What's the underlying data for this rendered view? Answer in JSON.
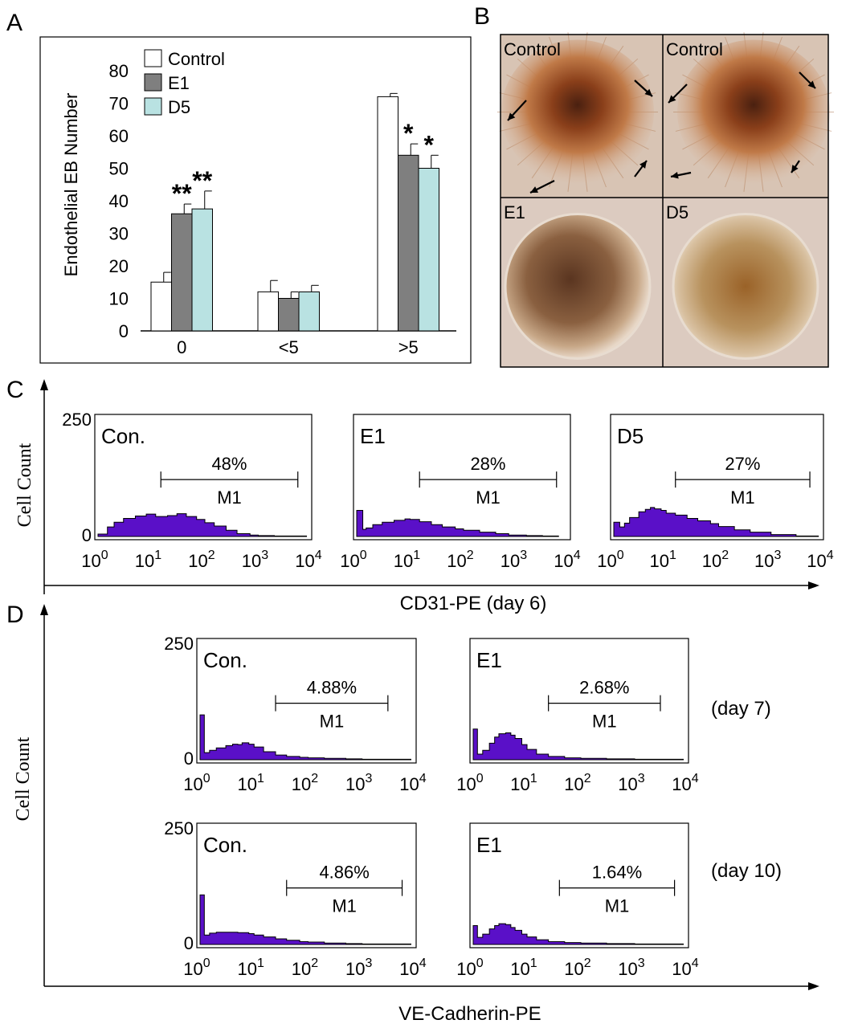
{
  "panel_labels": {
    "a": "A",
    "b": "B",
    "c": "C",
    "d": "D"
  },
  "colors": {
    "control": "#ffffff",
    "e1": "#7f7f7f",
    "d5": "#b9e2e2",
    "histogram": "#5a10c8"
  },
  "chart_data": [
    {
      "type": "bar",
      "panel": "A",
      "categories": [
        "0",
        "<5",
        ">5"
      ],
      "ylabel": "Endothelial EB Number",
      "ylim": [
        0,
        80
      ],
      "yticks": [
        "0",
        "10",
        "20",
        "30",
        "40",
        "50",
        "60",
        "70",
        "80"
      ],
      "legend_position": "top-left",
      "series": [
        {
          "name": "Control",
          "values": [
            15,
            12,
            72
          ],
          "errors": [
            3,
            3.5,
            1
          ]
        },
        {
          "name": "E1",
          "values": [
            36,
            10,
            54
          ],
          "errors": [
            3,
            2,
            3.5
          ]
        },
        {
          "name": "D5",
          "values": [
            37.5,
            12,
            50
          ],
          "errors": [
            5.5,
            2,
            4
          ]
        }
      ],
      "significance": [
        {
          "category": "0",
          "series": "E1",
          "label": "**"
        },
        {
          "category": "0",
          "series": "D5",
          "label": "**"
        },
        {
          "category": ">5",
          "series": "E1",
          "label": "*"
        },
        {
          "category": ">5",
          "series": "D5",
          "label": "*"
        }
      ]
    },
    {
      "type": "area",
      "panel": "C",
      "xlabel": "CD31-PE (day 6)",
      "ylabel": "Cell Count",
      "x_scale": "log",
      "xlim": [
        1,
        10000
      ],
      "ylim": [
        0,
        250
      ],
      "histograms": [
        {
          "name": "Con.",
          "gate": "M1",
          "gate_percent": "48%",
          "gate_range": [
            15,
            5500
          ],
          "x": [
            1,
            1.5,
            2,
            3,
            5,
            8,
            12,
            20,
            30,
            45,
            70,
            100,
            150,
            250,
            400,
            700,
            1000,
            2000,
            4000,
            8000
          ],
          "y": [
            5,
            20,
            30,
            38,
            43,
            47,
            42,
            44,
            48,
            42,
            36,
            29,
            22,
            13,
            6,
            3,
            2,
            1,
            1,
            0
          ]
        },
        {
          "name": "E1",
          "gate": "M1",
          "gate_percent": "28%",
          "gate_range": [
            15,
            5500
          ],
          "x": [
            1,
            1.3,
            1.5,
            2,
            3,
            5,
            8,
            10,
            15,
            25,
            40,
            70,
            100,
            200,
            400,
            700,
            1500,
            3000,
            6000
          ],
          "y": [
            55,
            15,
            18,
            25,
            30,
            34,
            37,
            36,
            31,
            25,
            20,
            16,
            13,
            9,
            6,
            3,
            2,
            1,
            0
          ]
        },
        {
          "name": "D5",
          "gate": "M1",
          "gate_percent": "27%",
          "gate_range": [
            15,
            5500
          ],
          "x": [
            1,
            1.3,
            1.6,
            2,
            3,
            4,
            5,
            6,
            8,
            10,
            15,
            25,
            40,
            70,
            100,
            200,
            400,
            1000,
            3000,
            8000
          ],
          "y": [
            30,
            20,
            28,
            40,
            52,
            57,
            61,
            58,
            55,
            49,
            45,
            38,
            33,
            27,
            21,
            14,
            9,
            4,
            1,
            0
          ]
        }
      ]
    },
    {
      "type": "area",
      "panel": "D",
      "xlabel": "VE-Cadherin-PE",
      "ylabel": "Cell Count",
      "x_scale": "log",
      "xlim": [
        1,
        10000
      ],
      "ylim": [
        0,
        250
      ],
      "histograms": [
        {
          "name": "Con.",
          "timepoint": "(day 7)",
          "gate": "M1",
          "gate_percent": "4.88%",
          "gate_range": [
            25,
            3000
          ],
          "x": [
            1,
            1.2,
            1.5,
            2,
            3,
            4,
            5,
            6,
            8,
            10,
            15,
            25,
            40,
            70,
            100,
            200,
            500,
            1000,
            3000,
            8000
          ],
          "y": [
            95,
            15,
            20,
            25,
            30,
            33,
            32,
            36,
            33,
            27,
            17,
            10,
            7,
            5,
            4,
            3,
            2,
            1,
            1,
            0
          ]
        },
        {
          "name": "E1",
          "timepoint": "(day 7)",
          "gate": "M1",
          "gate_percent": "2.68%",
          "gate_range": [
            25,
            3000
          ],
          "x": [
            1,
            1.2,
            1.5,
            2,
            2.5,
            3,
            4,
            5,
            6,
            8,
            10,
            15,
            25,
            50,
            100,
            300,
            1000,
            3000,
            8000
          ],
          "y": [
            65,
            12,
            20,
            35,
            48,
            55,
            57,
            52,
            45,
            32,
            22,
            12,
            7,
            4,
            3,
            2,
            1,
            1,
            0
          ]
        },
        {
          "name": "Con.",
          "timepoint": "(day 10)",
          "gate": "M1",
          "gate_percent": "4.86%",
          "gate_range": [
            40,
            5500
          ],
          "x": [
            1,
            1.2,
            1.5,
            2,
            3,
            5,
            8,
            10,
            15,
            25,
            40,
            70,
            100,
            200,
            500,
            1000,
            3000,
            8000
          ],
          "y": [
            105,
            20,
            24,
            26,
            26,
            25,
            23,
            20,
            16,
            12,
            9,
            6,
            5,
            3,
            2,
            1,
            1,
            0
          ]
        },
        {
          "name": "E1",
          "timepoint": "(day 10)",
          "gate": "M1",
          "gate_percent": "1.64%",
          "gate_range": [
            40,
            5500
          ],
          "x": [
            1,
            1.2,
            1.5,
            2,
            2.5,
            3,
            4,
            5,
            6,
            8,
            10,
            15,
            25,
            50,
            100,
            300,
            1000,
            3000,
            8000
          ],
          "y": [
            40,
            15,
            22,
            33,
            40,
            44,
            42,
            36,
            30,
            22,
            16,
            10,
            6,
            4,
            3,
            2,
            1,
            1,
            0
          ]
        }
      ]
    }
  ],
  "microscopy": {
    "panel": "B",
    "tiles": [
      {
        "label": "Control",
        "style": "sprouting"
      },
      {
        "label": "Control",
        "style": "sprouting"
      },
      {
        "label": "E1",
        "style": "compact"
      },
      {
        "label": "D5",
        "style": "compact"
      }
    ]
  }
}
